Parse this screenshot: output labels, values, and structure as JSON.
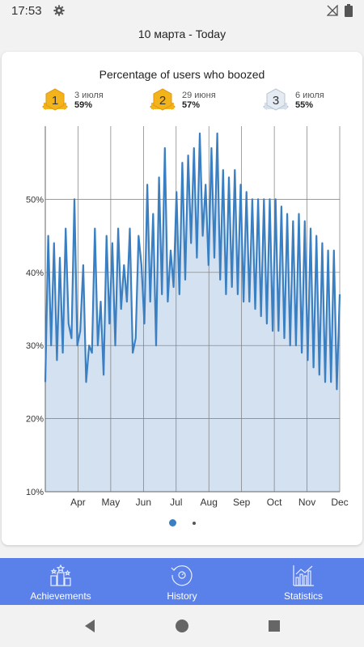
{
  "status_bar": {
    "time": "17:53"
  },
  "header": {
    "date_label": "10 марта - Today"
  },
  "chart_title": "Percentage of users who boozed",
  "medals": [
    {
      "rank": "1",
      "date": "3 июля",
      "pct": "59%",
      "color": "#f2b31b"
    },
    {
      "rank": "2",
      "date": "29 июня",
      "pct": "57%",
      "color": "#f2b31b"
    },
    {
      "rank": "3",
      "date": "6 июля",
      "pct": "55%",
      "color": "#d7e0ea"
    }
  ],
  "bottom_nav": {
    "achievements": "Achievements",
    "history": "History",
    "statistics": "Statistics"
  },
  "chart_data": {
    "type": "area",
    "title": "Percentage of users who boozed",
    "ylim": [
      10,
      60
    ],
    "y_ticks": [
      "10%",
      "20%",
      "30%",
      "40%",
      "50%"
    ],
    "x_ticks": [
      "Apr",
      "May",
      "Jun",
      "Jul",
      "Aug",
      "Sep",
      "Oct",
      "Nov",
      "Dec"
    ],
    "series": [
      {
        "values": [
          25,
          45,
          30,
          44,
          28,
          42,
          29,
          46,
          33,
          31,
          50,
          30,
          32,
          41,
          25,
          30,
          29,
          46,
          30,
          36,
          26,
          45,
          33,
          44,
          30,
          46,
          35,
          41,
          36,
          46,
          29,
          31,
          45,
          41,
          33,
          52,
          36,
          48,
          30,
          53,
          37,
          57,
          36,
          43,
          38,
          51,
          37,
          55,
          39,
          56,
          44,
          57,
          42,
          59,
          45,
          52,
          41,
          57,
          42,
          59,
          39,
          54,
          37,
          53,
          38,
          54,
          37,
          52,
          36,
          51,
          36,
          50,
          35,
          50,
          34,
          50,
          33,
          50,
          32,
          50,
          32,
          49,
          31,
          48,
          30,
          47,
          30,
          48,
          29,
          47,
          28,
          46,
          27,
          45,
          26,
          44,
          25,
          43,
          25,
          43,
          24,
          37
        ]
      }
    ],
    "colors": {
      "line": "#3a7fc1",
      "fill": "#d3e1f0",
      "grid": "#7a7a7a"
    }
  }
}
